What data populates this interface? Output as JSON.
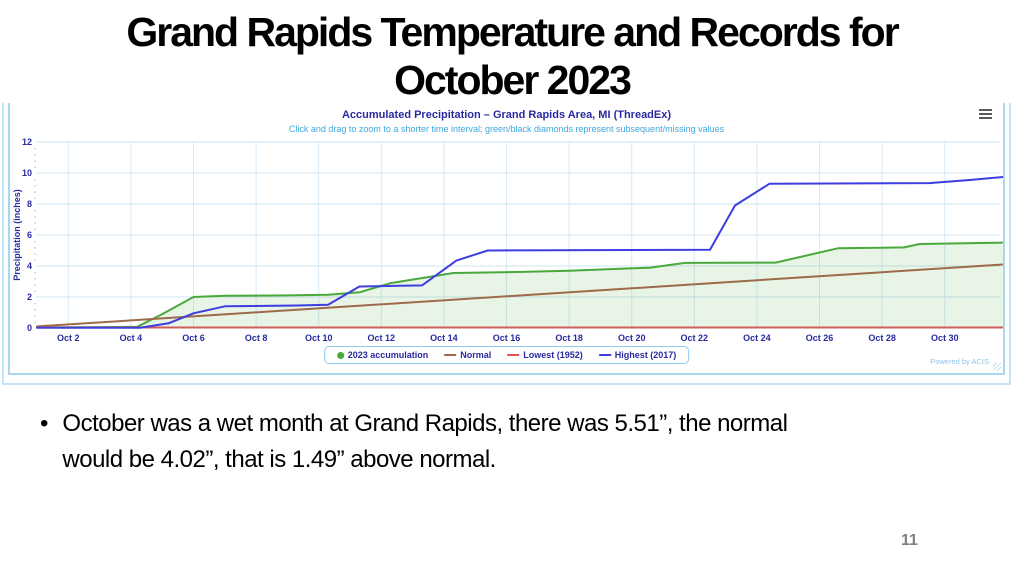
{
  "slide": {
    "title_line1": "Grand Rapids Temperature and Records for",
    "title_line2": "October 2023",
    "bullet_text": "October was a wet month at Grand Rapids, there was 5.51”, the normal would be 4.02”, that is 1.49” above normal.",
    "page_number": "11"
  },
  "chart": {
    "title": "Accumulated Precipitation – Grand Rapids Area, MI (ThreadEx)",
    "subtitle": "Click and drag to zoom to a shorter time interval; green/black diamonds represent subsequent/missing values",
    "powered_by": "Powered by ACIS",
    "menu_icon": "hamburger-icon",
    "legend": [
      {
        "label": "2023 accumulation",
        "color": "#4aa93c",
        "marker": "circle"
      },
      {
        "label": "Normal",
        "color": "#9e6b4a",
        "marker": "line"
      },
      {
        "label": "Lowest (1952)",
        "color": "#e05252",
        "marker": "line"
      },
      {
        "label": "Highest (2017)",
        "color": "#3d3de0",
        "marker": "line"
      }
    ]
  },
  "chart_data": {
    "type": "line",
    "title": "Accumulated Precipitation – Grand Rapids Area, MI (ThreadEx)",
    "xlabel": "",
    "ylabel": "Precipitation (inches)",
    "ylim": [
      0,
      12
    ],
    "xlim_days": [
      1,
      31.9
    ],
    "y_ticks": [
      0,
      2,
      4,
      6,
      8,
      10,
      12
    ],
    "x_ticks_days": [
      2,
      4,
      6,
      8,
      10,
      12,
      14,
      16,
      18,
      20,
      22,
      24,
      26,
      28,
      30
    ],
    "x_tick_labels": [
      "Oct 2",
      "Oct 4",
      "Oct 6",
      "Oct 8",
      "Oct 10",
      "Oct 12",
      "Oct 14",
      "Oct 16",
      "Oct 18",
      "Oct 20",
      "Oct 22",
      "Oct 24",
      "Oct 26",
      "Oct 28",
      "Oct 30"
    ],
    "grid": true,
    "legend_position": "bottom",
    "series": [
      {
        "name": "2023 accumulation",
        "color": "#4aa93c",
        "fill": true,
        "fill_opacity": 0.13,
        "points": [
          [
            1,
            0.05
          ],
          [
            2,
            0.05
          ],
          [
            3,
            0.06
          ],
          [
            4.2,
            0.08
          ],
          [
            5,
            0.9
          ],
          [
            6,
            2.0
          ],
          [
            7,
            2.08
          ],
          [
            9,
            2.1
          ],
          [
            10.3,
            2.15
          ],
          [
            11.3,
            2.3
          ],
          [
            12.3,
            2.9
          ],
          [
            14.3,
            3.55
          ],
          [
            16.5,
            3.62
          ],
          [
            18,
            3.7
          ],
          [
            20.6,
            3.9
          ],
          [
            21.7,
            4.2
          ],
          [
            24.6,
            4.22
          ],
          [
            26.6,
            5.15
          ],
          [
            28.7,
            5.2
          ],
          [
            29.2,
            5.42
          ],
          [
            31.9,
            5.51
          ]
        ]
      },
      {
        "name": "Normal",
        "color": "#9e6b4a",
        "fill": false,
        "points": [
          [
            1,
            0.1
          ],
          [
            31.9,
            4.1
          ]
        ]
      },
      {
        "name": "Lowest (1952)",
        "color": "#d05c5c",
        "fill": false,
        "points": [
          [
            1,
            0.03
          ],
          [
            31.9,
            0.03
          ]
        ]
      },
      {
        "name": "Highest (2017)",
        "color": "#3d3de0",
        "fill": false,
        "points": [
          [
            1,
            0.02
          ],
          [
            4.3,
            0.02
          ],
          [
            5.2,
            0.3
          ],
          [
            6,
            0.95
          ],
          [
            7,
            1.4
          ],
          [
            9.3,
            1.45
          ],
          [
            10.3,
            1.5
          ],
          [
            11.3,
            2.68
          ],
          [
            13.3,
            2.75
          ],
          [
            14.4,
            4.35
          ],
          [
            15.4,
            5.0
          ],
          [
            22.5,
            5.05
          ],
          [
            23.3,
            7.9
          ],
          [
            24.4,
            9.3
          ],
          [
            29.5,
            9.35
          ],
          [
            30.8,
            9.55
          ],
          [
            31.9,
            9.75
          ]
        ]
      }
    ]
  }
}
